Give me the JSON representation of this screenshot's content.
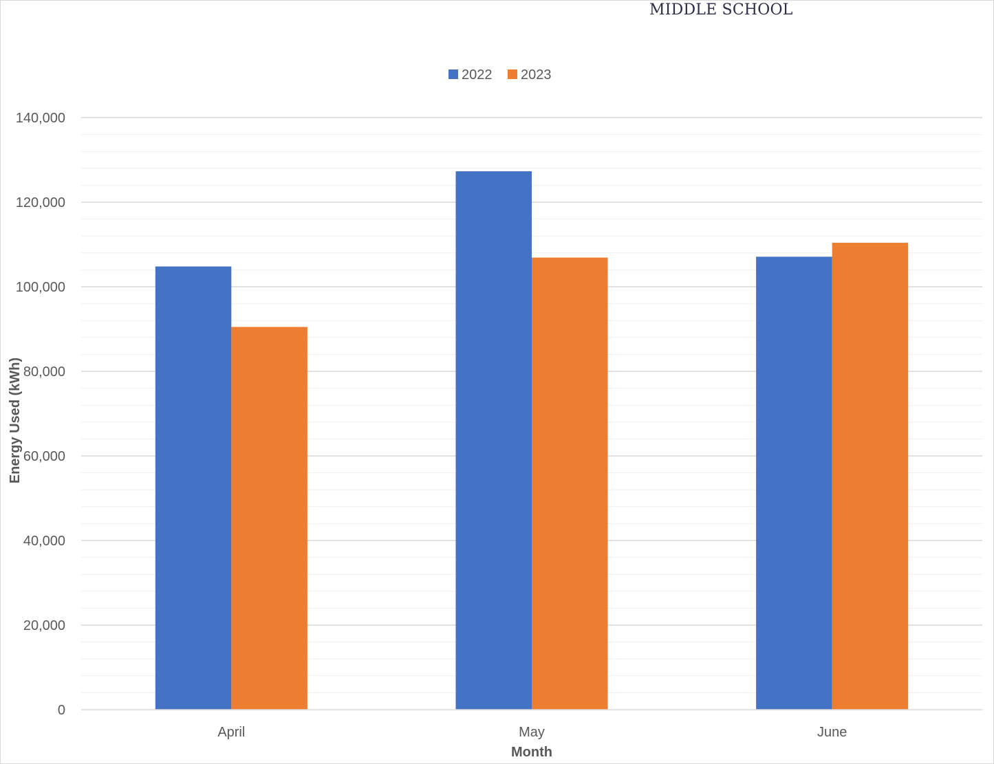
{
  "chart_data": {
    "type": "bar",
    "title": "MIDDLE SCHOOL",
    "categories": [
      "April",
      "May",
      "June"
    ],
    "series": [
      {
        "name": "2022",
        "color": "#4472C4",
        "values": [
          104800,
          127300,
          107100
        ]
      },
      {
        "name": "2023",
        "color": "#ED7D31",
        "values": [
          90500,
          106900,
          110400
        ]
      }
    ],
    "xlabel": "Month",
    "ylabel": "Energy Used (kWh)",
    "ylim": [
      0,
      140000
    ],
    "yticks": [
      0,
      20000,
      40000,
      60000,
      80000,
      100000,
      120000,
      140000
    ],
    "ytick_labels": [
      "0",
      "20,000",
      "40,000",
      "60,000",
      "80,000",
      "100,000",
      "120,000",
      "140,000"
    ],
    "grid": true,
    "legend_position": "top-center"
  }
}
